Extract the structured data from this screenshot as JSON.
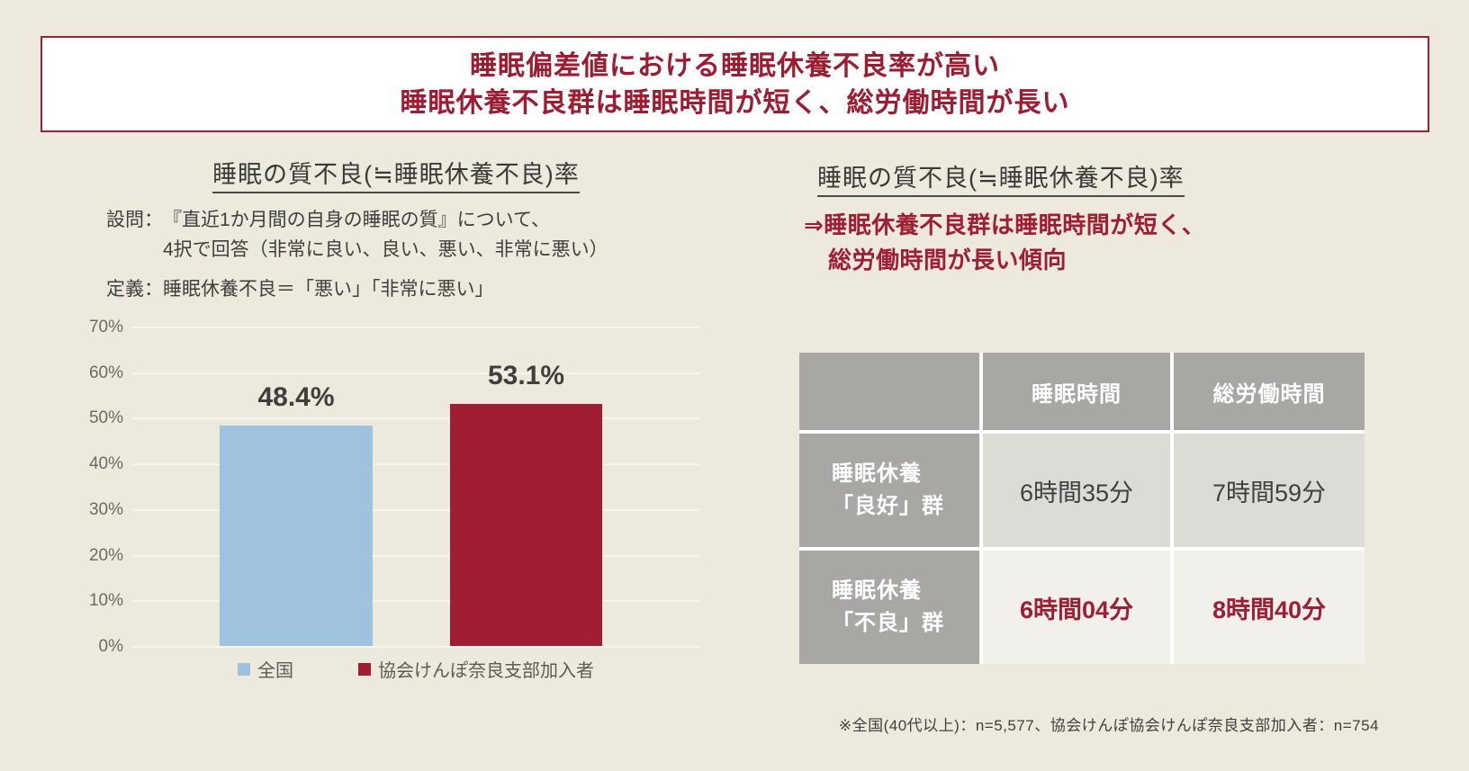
{
  "colors": {
    "accent_red": "#a01e33",
    "bar_blue": "#9fc3de",
    "page_bg": "#ede9dc",
    "table_header_gray": "#a8a7a4",
    "table_cell_gray": "#dcdbd6",
    "table_cell_light": "#f1f0eb"
  },
  "title": {
    "line1": "睡眠偏差値における睡眠休養不良率が高い",
    "line2": "睡眠休養不良群は睡眠時間が短く、総労働時間が長い"
  },
  "left": {
    "question_label": "設問：",
    "question_line1": "『直近1か月間の自身の睡眠の質』について、",
    "question_line2": "4択で回答（非常に良い、良い、悪い、非常に悪い）",
    "definition_label": "定義：",
    "definition_text": "睡眠休養不良＝「悪い」「非常に悪い」"
  },
  "right": {
    "heading": "睡眠の質不良(≒睡眠休養不良)率",
    "lead_line1": "⇒睡眠休養不良群は睡眠時間が短く、",
    "lead_line2": "総労働時間が長い傾向"
  },
  "chart_data": [
    {
      "type": "bar",
      "title": "睡眠の質不良(≒睡眠休養不良)率",
      "categories": [
        "全国",
        "協会けんぽ奈良支部加入者"
      ],
      "values": [
        48.4,
        53.1
      ],
      "value_labels": [
        "48.4%",
        "53.1%"
      ],
      "colors": [
        "#9fc3de",
        "#a01e33"
      ],
      "ylim": [
        0,
        70
      ],
      "ytick_step": 10,
      "ytick_labels": [
        "0%",
        "10%",
        "20%",
        "30%",
        "40%",
        "50%",
        "60%",
        "70%"
      ],
      "grid": true,
      "legend_position": "bottom"
    },
    {
      "type": "table",
      "col_headers": [
        "",
        "睡眠時間",
        "総労働時間"
      ],
      "row_labels": [
        "睡眠休養\n「良好」群",
        "睡眠休養\n「不良」群"
      ],
      "rows": [
        [
          "6時間35分",
          "7時間59分"
        ],
        [
          "6時間04分",
          "8時間40分"
        ]
      ],
      "highlight_row": 1
    }
  ],
  "footnote": {
    "text": "※全国(40代以上)：n=5,577、協会けんぽ協会けんぽ奈良支部加入者：n=754"
  }
}
